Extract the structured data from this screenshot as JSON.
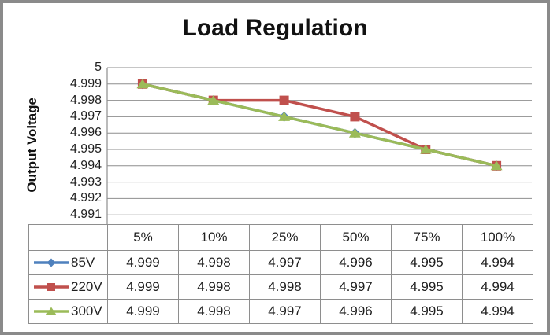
{
  "chart_data": {
    "type": "line",
    "title": "Load Regulation",
    "ylabel": "Output Voltage",
    "xlabel": "",
    "categories": [
      "5%",
      "10%",
      "25%",
      "50%",
      "75%",
      "100%"
    ],
    "series": [
      {
        "name": "85V",
        "color": "#4F81BD",
        "marker": "diamond",
        "values": [
          4.999,
          4.998,
          4.997,
          4.996,
          4.995,
          4.994
        ]
      },
      {
        "name": "220V",
        "color": "#C0504D",
        "marker": "square",
        "values": [
          4.999,
          4.998,
          4.998,
          4.997,
          4.995,
          4.994
        ]
      },
      {
        "name": "300V",
        "color": "#9BBB59",
        "marker": "triangle",
        "values": [
          4.999,
          4.998,
          4.997,
          4.996,
          4.995,
          4.994
        ]
      }
    ],
    "y_axis": {
      "max": 5,
      "min": 4.991,
      "step": 0.001,
      "ticks": [
        "5",
        "4.999",
        "4.998",
        "4.997",
        "4.996",
        "4.995",
        "4.994",
        "4.993",
        "4.992",
        "4.991"
      ]
    },
    "grid": true,
    "grid_color": "#8e8e8e",
    "frame_color": "#8a8a8a",
    "legend_position": "data-table-left"
  }
}
